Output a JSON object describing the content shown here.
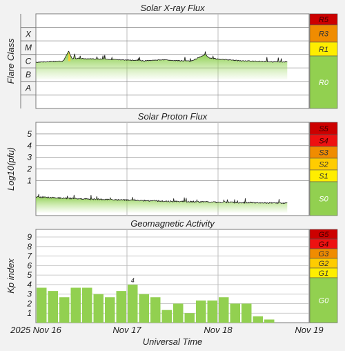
{
  "chart_data": [
    {
      "type": "area",
      "title": "Solar X-ray Flux",
      "ylabel": "Flare Class",
      "x_range": [
        0,
        3
      ],
      "x_unit": "days from 2025 Nov 16 00:00 UT",
      "y_scale": "log10 W/m^2",
      "ylim": [
        -9,
        -2
      ],
      "class_labels": [
        {
          "label": "X",
          "log_flux": -3.5
        },
        {
          "label": "M",
          "log_flux": -4.5
        },
        {
          "label": "C",
          "log_flux": -5.5
        },
        {
          "label": "B",
          "log_flux": -6.5
        },
        {
          "label": "A",
          "log_flux": -7.5
        }
      ],
      "series": [
        {
          "x": [
            0.0,
            0.1,
            0.2,
            0.3,
            0.36,
            0.37,
            0.4,
            0.5,
            0.6,
            0.7,
            0.8,
            0.9,
            1.0,
            1.1,
            1.2,
            1.3,
            1.4,
            1.5,
            1.6,
            1.7,
            1.8,
            1.86,
            1.9,
            2.0,
            2.1,
            2.2,
            2.3,
            2.4,
            2.5,
            2.6,
            2.7,
            2.76
          ],
          "y": [
            -5.58,
            -5.55,
            -5.52,
            -5.5,
            -4.75,
            -4.95,
            -5.3,
            -5.3,
            -5.32,
            -5.34,
            -5.36,
            -5.4,
            -5.42,
            -5.45,
            -5.47,
            -5.43,
            -5.4,
            -5.45,
            -5.47,
            -5.5,
            -5.2,
            -5.0,
            -5.25,
            -5.35,
            -5.4,
            -5.45,
            -5.48,
            -5.5,
            -5.52,
            -5.55,
            -5.55,
            -5.55
          ]
        }
      ],
      "scale": [
        {
          "label": "R5",
          "color": "#cc0000"
        },
        {
          "label": "R3",
          "color": "#f08c00"
        },
        {
          "label": "R1",
          "color": "#ffee00"
        },
        {
          "label": "R0",
          "color": "#92d050"
        }
      ]
    },
    {
      "type": "area",
      "title": "Solar Proton Flux",
      "ylabel": "Log10(pfu)",
      "x_range": [
        0,
        3
      ],
      "ylim": [
        -2,
        6
      ],
      "yticks": [
        1,
        2,
        3,
        4,
        5
      ],
      "series": [
        {
          "x": [
            0.0,
            0.3,
            0.6,
            0.9,
            1.2,
            1.5,
            1.8,
            2.1,
            2.4,
            2.76
          ],
          "y": [
            -0.4,
            -0.5,
            -0.58,
            -0.65,
            -0.72,
            -0.78,
            -0.82,
            -0.86,
            -0.9,
            -0.93
          ]
        }
      ],
      "scale": [
        {
          "label": "S5",
          "color": "#cc0000"
        },
        {
          "label": "S4",
          "color": "#ee1111"
        },
        {
          "label": "S3",
          "color": "#f08c00"
        },
        {
          "label": "S2",
          "color": "#ffcc00"
        },
        {
          "label": "S1",
          "color": "#ffee00"
        },
        {
          "label": "S0",
          "color": "#92d050"
        }
      ]
    },
    {
      "type": "bar",
      "title": "Geomagnetic Activity",
      "ylabel": "Kp index",
      "xlabel": "Universal Time",
      "ylim": [
        0,
        9.8
      ],
      "yticks": [
        1,
        2,
        3,
        4,
        5,
        6,
        7,
        8,
        9
      ],
      "bar_width_hours": 3,
      "values": [
        3.67,
        3.33,
        2.67,
        3.67,
        3.67,
        3.0,
        2.67,
        3.33,
        4.0,
        3.0,
        2.67,
        1.33,
        2.0,
        1.0,
        2.33,
        2.33,
        2.67,
        2.0,
        2.0,
        0.67,
        0.33
      ],
      "bar_labels": [
        {
          "index": 8,
          "text": "4"
        }
      ],
      "scale": [
        {
          "label": "G5",
          "color": "#cc0000"
        },
        {
          "label": "G4",
          "color": "#ee1111"
        },
        {
          "label": "G3",
          "color": "#f08c00"
        },
        {
          "label": "G2",
          "color": "#ffcc00"
        },
        {
          "label": "G1",
          "color": "#ffee00"
        },
        {
          "label": "G0",
          "color": "#92d050"
        }
      ],
      "xticks": [
        "2025 Nov 16",
        "Nov 17",
        "Nov 18",
        "Nov 19"
      ]
    }
  ]
}
